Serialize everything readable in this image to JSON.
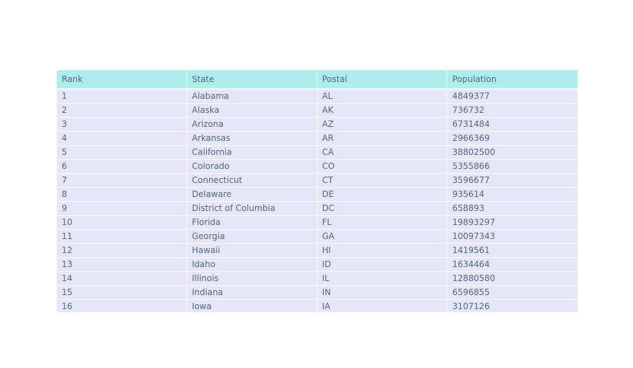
{
  "chart_data": {
    "type": "table",
    "header_color": "#afecec",
    "cell_color": "#e6e6f8",
    "text_color": "#506784",
    "columns": [
      "Rank",
      "State",
      "Postal",
      "Population"
    ],
    "rows": [
      [
        "1",
        "Alabama",
        "AL",
        "4849377"
      ],
      [
        "2",
        "Alaska",
        "AK",
        "736732"
      ],
      [
        "3",
        "Arizona",
        "AZ",
        "6731484"
      ],
      [
        "4",
        "Arkansas",
        "AR",
        "2966369"
      ],
      [
        "5",
        "California",
        "CA",
        "38802500"
      ],
      [
        "6",
        "Colorado",
        "CO",
        "5355866"
      ],
      [
        "7",
        "Connecticut",
        "CT",
        "3596677"
      ],
      [
        "8",
        "Delaware",
        "DE",
        "935614"
      ],
      [
        "9",
        "District of Columbia",
        "DC",
        "658893"
      ],
      [
        "10",
        "Florida",
        "FL",
        "19893297"
      ],
      [
        "11",
        "Georgia",
        "GA",
        "10097343"
      ],
      [
        "12",
        "Hawaii",
        "HI",
        "1419561"
      ],
      [
        "13",
        "Idaho",
        "ID",
        "1634464"
      ],
      [
        "14",
        "Illinois",
        "IL",
        "12880580"
      ],
      [
        "15",
        "Indiana",
        "IN",
        "6596855"
      ],
      [
        "16",
        "Iowa",
        "IA",
        "3107126"
      ]
    ]
  }
}
